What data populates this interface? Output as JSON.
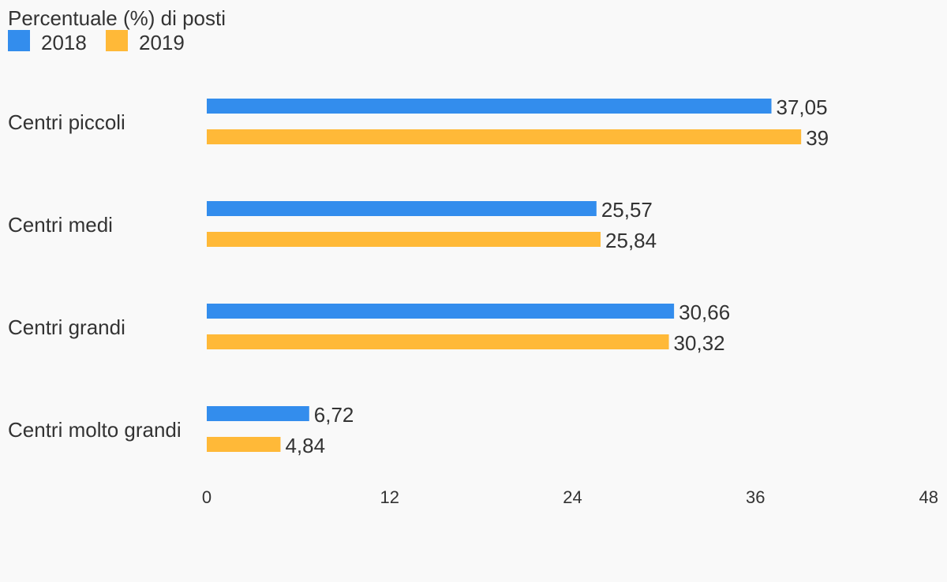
{
  "chart_data": {
    "type": "bar",
    "orientation": "horizontal",
    "title": "Percentuale (%) di posti",
    "categories": [
      "Centri piccoli",
      "Centri medi",
      "Centri grandi",
      "Centri molto grandi"
    ],
    "series": [
      {
        "name": "2018",
        "color": "#338ded",
        "values": [
          37.05,
          25.57,
          30.66,
          6.72
        ],
        "labels": [
          "37,05",
          "25,57",
          "30,66",
          "6,72"
        ]
      },
      {
        "name": "2019",
        "color": "#ffb938",
        "values": [
          39,
          25.84,
          30.32,
          4.84
        ],
        "labels": [
          "39",
          "25,84",
          "30,32",
          "4,84"
        ]
      }
    ],
    "xlim": [
      0,
      48
    ],
    "xticks": [
      "0",
      "12",
      "24",
      "36",
      "48"
    ],
    "grid": false,
    "legend": "top-left"
  }
}
